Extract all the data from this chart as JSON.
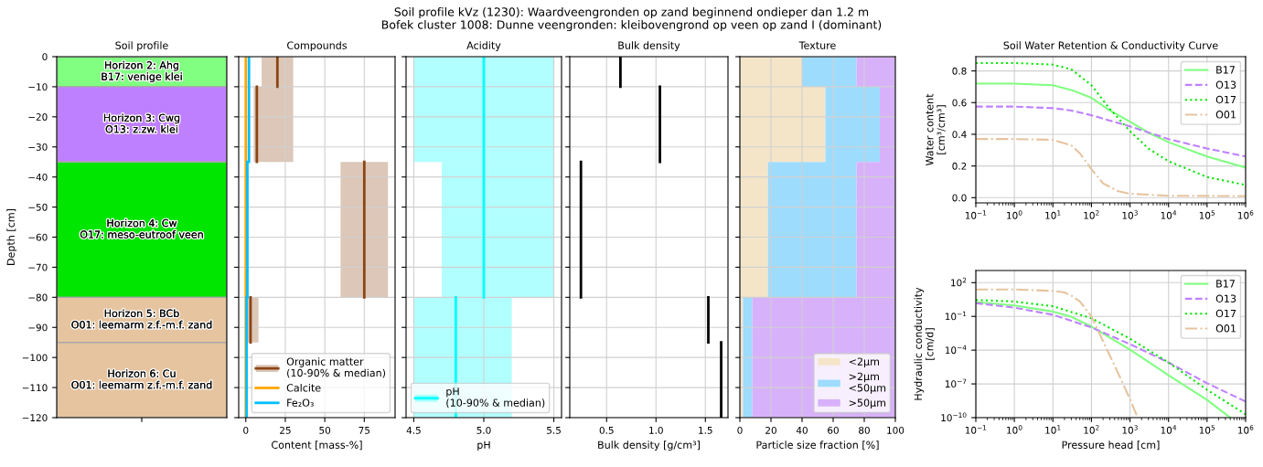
{
  "chart_data": [
    {
      "type": "bar",
      "stacked": true,
      "title": "Soil profile",
      "ylabel": "Depth [cm]",
      "categories": [
        null
      ],
      "annotations": [
        "Soil profile kVz (1230): Waardveengronden op zand beginnend ondieper dan 1.2 m",
        "Bofek cluster 1008: Dunne veengronden: kleibovengrond op veen op zand I (dominant)"
      ],
      "series": [
        {
          "name": "Horizon 2: Ahg\nB17: venige klei",
          "color": "#80ff80",
          "values": [
            -10
          ]
        },
        {
          "name": "Horizon 3: Cwg\nO13: z.zw. klei",
          "color": "#bf80ff",
          "values": [
            -25
          ]
        },
        {
          "name": "Horizon 4: Cw\nO17: meso-eutroof veen",
          "color": "#00e600",
          "values": [
            -45
          ]
        },
        {
          "name": "Horizon 5: BCb\nO01: leemarm z.f.-m.f. zand",
          "color": "#e6c49f",
          "values": [
            -15
          ]
        },
        {
          "name": "Horizon 6: Cu\nO01: leemarm z.f.-m.f. zand",
          "color": "#e6c49f",
          "values": [
            -25
          ]
        }
      ],
      "ylim": [
        -120,
        0
      ],
      "yticks": [
        0,
        {
          "value": -10,
          "label": "−10"
        },
        {
          "value": -20,
          "label": "−20"
        },
        {
          "value": -30,
          "label": "−30"
        },
        {
          "value": -40,
          "label": "−40"
        },
        {
          "value": -50,
          "label": "−50"
        },
        {
          "value": -60,
          "label": "−60"
        },
        {
          "value": -70,
          "label": "−70"
        },
        {
          "value": -80,
          "label": "−80"
        },
        {
          "value": -90,
          "label": "−90"
        },
        {
          "value": -100,
          "label": "−100"
        },
        {
          "value": -110,
          "label": "−110"
        },
        {
          "value": -120,
          "label": "−120"
        }
      ]
    },
    {
      "type": "line",
      "orientation": "horizontal",
      "title": "Compounds",
      "xlabel": "Content [mass-%]",
      "grid": true,
      "legend": "bottom right",
      "tick_labels": "x",
      "series": [
        {
          "name": "Organic matter\n(10-90% & median)",
          "color": "#8b4513",
          "x": [
            0,
            -10,
            null,
            -10,
            -35,
            null,
            -35,
            -80,
            null,
            -80,
            -95
          ],
          "values": [
            20,
            20,
            null,
            7,
            7,
            null,
            75,
            75,
            null,
            3,
            3
          ],
          "lower": [
            10,
            10,
            null,
            5,
            5,
            null,
            60,
            60,
            null,
            1,
            1
          ],
          "upper": [
            30,
            30,
            null,
            30,
            30,
            null,
            90,
            90,
            null,
            8,
            8
          ]
        },
        {
          "name": "Calcite",
          "color": "#ffa500",
          "x": [
            0,
            -120
          ],
          "values": [
            0,
            0
          ]
        },
        {
          "name": "Fe₂O₃",
          "color": "#00bfff",
          "x": [
            0,
            -35,
            null,
            -35,
            -80,
            null,
            -80,
            -120
          ],
          "values": [
            2,
            2,
            null,
            1,
            1,
            null,
            0.5,
            0.5
          ]
        }
      ],
      "xlim": [
        -4.5,
        94.5
      ],
      "xticks": [
        0,
        25,
        50,
        75
      ],
      "ylim": [
        -120,
        0
      ],
      "yticks": [
        0,
        -10,
        -20,
        -30,
        -40,
        -50,
        -60,
        -70,
        -80,
        -90,
        -100,
        -110,
        -120
      ]
    },
    {
      "type": "line",
      "orientation": "horizontal",
      "title": "Acidity",
      "xlabel": "pH",
      "grid": true,
      "legend": "bottom left",
      "tick_labels": "x",
      "series": [
        {
          "name": "pH\n(10-90% & median)",
          "color": "#00ffff",
          "x": [
            0,
            -35,
            null,
            -35,
            -80,
            null,
            -80,
            -120
          ],
          "values": [
            5.0,
            5.0,
            null,
            5.0,
            5.0,
            null,
            4.8,
            4.8
          ],
          "lower": [
            4.5,
            4.5,
            null,
            4.7,
            4.7,
            null,
            4.5,
            4.5
          ],
          "upper": [
            5.5,
            5.5,
            null,
            5.5,
            5.5,
            null,
            5.2,
            5.2
          ]
        }
      ],
      "xlim": [
        4.445,
        5.555
      ],
      "xticks": [
        4.5,
        {
          "value": 5,
          "label": "5.0"
        },
        5.5
      ],
      "ylim": [
        -120,
        0
      ],
      "yticks": [
        0,
        -10,
        -20,
        -30,
        -40,
        -50,
        -60,
        -70,
        -80,
        -90,
        -100,
        -110,
        -120
      ]
    },
    {
      "type": "line",
      "orientation": "horizontal",
      "title": "Bulk density",
      "xlabel": "Bulk density [g/cm³]",
      "grid": true,
      "tick_labels": "x",
      "series": [
        {
          "color": "#000000",
          "x": [
            0,
            -10,
            null,
            -10,
            -35,
            null,
            -35,
            -80,
            null,
            -80,
            -95,
            null,
            -95,
            -120
          ],
          "values": [
            0.64,
            0.64,
            null,
            1.04,
            1.04,
            null,
            0.24,
            0.24,
            null,
            1.53,
            1.53,
            null,
            1.66,
            1.66
          ]
        }
      ],
      "xlim": [
        0.127,
        1.729
      ],
      "xticks": [
        0.5,
        {
          "value": 1,
          "label": "1.0"
        },
        1.5
      ],
      "ylim": [
        -120,
        0
      ],
      "yticks": [
        0,
        -10,
        -20,
        -30,
        -40,
        -50,
        -60,
        -70,
        -80,
        -90,
        -100,
        -110,
        -120
      ]
    },
    {
      "type": "area",
      "stacked": true,
      "orientation": "horizontal",
      "title": "Texture",
      "xlabel": "Particle size fraction [%]",
      "grid": true,
      "legend": "bottom right",
      "tick_labels": "x",
      "x": [
        0,
        -10,
        -10,
        -35,
        -35,
        -80,
        -80,
        -120
      ],
      "series": [
        {
          "name": "<2µm",
          "color": "#f5e5c8",
          "values": [
            40,
            40,
            55,
            55,
            18,
            18,
            2,
            2
          ]
        },
        {
          "name": ">2µm\n<50µm",
          "color": "#9edcfd",
          "values": [
            35,
            35,
            35,
            35,
            57,
            57,
            6,
            6
          ]
        },
        {
          "name": ">50µm",
          "color": "#d8b1fb",
          "values": [
            25,
            25,
            10,
            10,
            25,
            25,
            92,
            92
          ]
        }
      ],
      "xlim": [
        0,
        100
      ],
      "xticks": [
        0,
        20,
        40,
        60,
        80,
        100
      ],
      "ylim": [
        -120,
        0
      ],
      "yticks": [
        0,
        -10,
        -20,
        -30,
        -40,
        -50,
        -60,
        -70,
        -80,
        -90,
        -100,
        -110,
        -120
      ]
    },
    {
      "type": "line",
      "title": "Soil Water Retention & Conductivity Curve",
      "ylabel": "Water content\n[cm³/cm³]",
      "log": "x",
      "grid": true,
      "legend": "top right",
      "series": [
        {
          "name": "B17",
          "color": "#80ff80",
          "line_style": "solid",
          "x": [
            0.1,
            1,
            10,
            30,
            100,
            300,
            1000,
            3000,
            10000,
            100000,
            1000000
          ],
          "values": [
            0.72,
            0.72,
            0.71,
            0.68,
            0.63,
            0.55,
            0.48,
            0.41,
            0.35,
            0.26,
            0.19
          ]
        },
        {
          "name": "O13",
          "color": "#bf80ff",
          "line_style": "dashed",
          "x": [
            0.1,
            1,
            10,
            30,
            100,
            1000,
            10000,
            100000,
            1000000
          ],
          "values": [
            0.575,
            0.575,
            0.565,
            0.55,
            0.52,
            0.45,
            0.37,
            0.31,
            0.26
          ]
        },
        {
          "name": "O17",
          "color": "#00e600",
          "line_style": "dotted",
          "x": [
            0.1,
            1,
            10,
            30,
            100,
            300,
            1000,
            3000,
            10000,
            100000,
            1000000
          ],
          "values": [
            0.85,
            0.85,
            0.84,
            0.81,
            0.71,
            0.56,
            0.42,
            0.31,
            0.23,
            0.13,
            0.08
          ]
        },
        {
          "name": "O01",
          "color": "#e6c49f",
          "line_style": "dashdot",
          "x": [
            0.1,
            1,
            10,
            30,
            50,
            100,
            200,
            500,
            1000,
            10000,
            1000000
          ],
          "values": [
            0.37,
            0.37,
            0.365,
            0.33,
            0.28,
            0.18,
            0.09,
            0.04,
            0.025,
            0.012,
            0.01
          ]
        }
      ],
      "xlim": [
        0.1,
        1000000
      ],
      "xticks": [
        {
          "value": 0.1,
          "label": "10$^{−1}$"
        },
        {
          "value": 1,
          "label": "10$^{0}$"
        },
        {
          "value": 10,
          "label": "10$^{1}$"
        },
        {
          "value": 100,
          "label": "10$^{2}$"
        },
        {
          "value": 1000,
          "label": "10$^{3}$"
        },
        {
          "value": 10000,
          "label": "10$^{4}$"
        },
        {
          "value": 100000,
          "label": "10$^{5}$"
        },
        {
          "value": 1000000,
          "label": "10$^{6}$"
        }
      ],
      "ylim": [
        -0.033,
        0.89
      ],
      "yticks": [
        {
          "value": 0,
          "label": "0.0"
        },
        0.2,
        0.4,
        0.6,
        0.8
      ]
    },
    {
      "type": "line",
      "xlabel": "Pressure head [cm]",
      "ylabel": "Hydraulic conductivity\n[cm/d]",
      "log": "xy",
      "grid": true,
      "legend": "top right",
      "series": [
        {
          "name": "B17",
          "color": "#80ff80",
          "line_style": "solid",
          "x": [
            0.1,
            1,
            10,
            30,
            100,
            1000,
            10000,
            100000,
            400000
          ],
          "values": [
            1.9,
            0.93,
            0.27,
            0.093,
            0.0126,
            0.00011,
            5.8e-07,
            3.7e-09,
            1e-10
          ]
        },
        {
          "name": "O13",
          "color": "#bf80ff",
          "line_style": "dashed",
          "x": [
            0.1,
            1,
            10,
            100,
            1000,
            10000,
            100000,
            1000000
          ],
          "values": [
            1.5,
            0.6,
            0.14,
            0.0105,
            0.00034,
            8e-06,
            1.15e-07,
            2.7e-09
          ]
        },
        {
          "name": "O17",
          "color": "#00e600",
          "line_style": "dotted",
          "x": [
            0.1,
            1,
            10,
            100,
            1000,
            10000,
            100000,
            1000000
          ],
          "values": [
            2.9,
            2.1,
            0.8,
            0.068,
            0.00105,
            8e-06,
            3e-08,
            2e-10
          ]
        },
        {
          "name": "O01",
          "color": "#e6c49f",
          "line_style": "dashdot",
          "x": [
            0.1,
            1,
            10,
            20,
            30,
            50,
            100,
            200,
            300,
            500,
            1000,
            1580
          ],
          "values": [
            25,
            25,
            18.6,
            13.5,
            7.2,
            2.1,
            0.1,
            0.00063,
            3.2e-05,
            8e-07,
            4.5e-09,
            1e-10
          ]
        }
      ],
      "xlim": [
        0.1,
        1000000
      ],
      "xticks": [
        {
          "value": 0.1,
          "label": "10$^{−1}$"
        },
        {
          "value": 1,
          "label": "10$^{0}$"
        },
        {
          "value": 10,
          "label": "10$^{1}$"
        },
        {
          "value": 100,
          "label": "10$^{2}$"
        },
        {
          "value": 1000,
          "label": "10$^{3}$"
        },
        {
          "value": 10000,
          "label": "10$^{4}$"
        },
        {
          "value": 100000,
          "label": "10$^{5}$"
        },
        {
          "value": 1000000,
          "label": "10$^{6}$"
        }
      ],
      "ylim": [
        1e-10,
        1200
      ],
      "yticks": [
        {
          "value": 100,
          "label": "10$^{2}$"
        },
        {
          "value": 0.1,
          "label": "10$^{−1}$"
        },
        {
          "value": 0.0001,
          "label": "10$^{−4}$"
        },
        {
          "value": 1e-07,
          "label": "10$^{−7}$"
        },
        {
          "value": 1e-10,
          "label": "10$^{−10}$"
        }
      ]
    }
  ]
}
